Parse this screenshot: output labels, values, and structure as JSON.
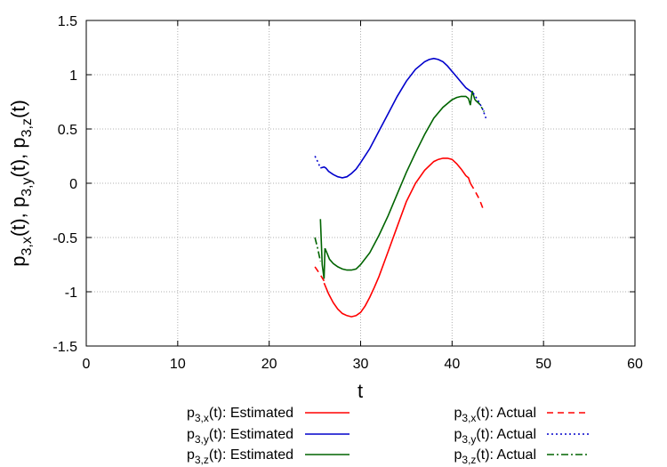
{
  "chart_data": {
    "type": "line",
    "title": "",
    "xlabel": "t",
    "ylabel": "p3,x(t), p3,y(t), p3,z(t)",
    "ylabel_parts": [
      {
        "base": "p",
        "sub": "3,x",
        "rest": "(t), "
      },
      {
        "base": "p",
        "sub": "3,y",
        "rest": "(t), "
      },
      {
        "base": "p",
        "sub": "3,z",
        "rest": "(t)"
      }
    ],
    "xlim": [
      0,
      60
    ],
    "ylim": [
      -1.5,
      1.5
    ],
    "xticks": [
      0,
      10,
      20,
      30,
      40,
      50,
      60
    ],
    "yticks": [
      -1.5,
      -1,
      -0.5,
      0,
      0.5,
      1,
      1.5
    ],
    "xtick_labels": [
      "0",
      "10",
      "20",
      "30",
      "40",
      "50",
      "60"
    ],
    "ytick_labels": [
      "-1.5",
      "-1",
      "-0.5",
      "0",
      "0.5",
      "1",
      "1.5"
    ],
    "grid": true,
    "legend_position": "below",
    "series": [
      {
        "name": "p3,x(t): Estimated",
        "legend": {
          "base": "p",
          "sub": "3,x",
          "rest": "(t): Estimated"
        },
        "color": "#ff0000",
        "dash": "solid",
        "x": [
          26.0,
          26.5,
          27.0,
          27.5,
          28.0,
          28.5,
          29.0,
          29.5,
          30.0,
          30.5,
          31.0,
          31.5,
          32.0,
          33.0,
          34.0,
          35.0,
          36.0,
          37.0,
          38.0,
          38.5,
          39.0,
          39.5,
          40.0,
          40.5,
          41.0,
          41.5,
          41.8,
          42.0
        ],
        "y": [
          -0.92,
          -1.02,
          -1.1,
          -1.16,
          -1.2,
          -1.22,
          -1.23,
          -1.22,
          -1.19,
          -1.13,
          -1.05,
          -0.96,
          -0.86,
          -0.63,
          -0.4,
          -0.17,
          0.0,
          0.12,
          0.2,
          0.22,
          0.23,
          0.23,
          0.22,
          0.18,
          0.13,
          0.07,
          0.05,
          0.0
        ]
      },
      {
        "name": "p3,y(t): Estimated",
        "legend": {
          "base": "p",
          "sub": "3,y",
          "rest": "(t): Estimated"
        },
        "color": "#0000cc",
        "dash": "solid",
        "x": [
          25.6,
          26.0,
          26.2,
          26.5,
          27.0,
          27.5,
          28.0,
          28.5,
          29.0,
          29.5,
          30.0,
          31.0,
          32.0,
          33.0,
          34.0,
          35.0,
          36.0,
          37.0,
          37.5,
          38.0,
          38.5,
          39.0,
          39.5,
          40.0,
          40.5,
          41.0,
          41.5,
          42.0,
          42.3
        ],
        "y": [
          0.14,
          0.15,
          0.14,
          0.11,
          0.08,
          0.06,
          0.05,
          0.06,
          0.09,
          0.13,
          0.19,
          0.32,
          0.48,
          0.64,
          0.8,
          0.94,
          1.05,
          1.12,
          1.14,
          1.15,
          1.14,
          1.12,
          1.08,
          1.03,
          0.98,
          0.93,
          0.88,
          0.85,
          0.83
        ]
      },
      {
        "name": "p3,z(t): Estimated",
        "legend": {
          "base": "p",
          "sub": "3,z",
          "rest": "(t): Estimated"
        },
        "color": "#006400",
        "dash": "solid",
        "x": [
          25.6,
          25.8,
          26.0,
          26.1,
          26.3,
          26.6,
          27.0,
          27.5,
          28.0,
          28.5,
          29.0,
          29.5,
          30.0,
          31.0,
          32.0,
          33.0,
          34.0,
          35.0,
          36.0,
          37.0,
          38.0,
          39.0,
          40.0,
          40.5,
          41.0,
          41.5,
          41.8,
          42.0,
          42.2,
          42.5
        ],
        "y": [
          -0.33,
          -0.75,
          -0.88,
          -0.6,
          -0.64,
          -0.7,
          -0.74,
          -0.77,
          -0.79,
          -0.8,
          -0.8,
          -0.79,
          -0.75,
          -0.64,
          -0.48,
          -0.3,
          -0.1,
          0.1,
          0.28,
          0.45,
          0.6,
          0.7,
          0.77,
          0.79,
          0.8,
          0.8,
          0.78,
          0.72,
          0.85,
          0.77
        ]
      },
      {
        "name": "p3,x(t): Actual",
        "legend": {
          "base": "p",
          "sub": "3,x",
          "rest": "(t): Actual"
        },
        "color": "#ff0000",
        "dash": "dashed",
        "x": [
          25.0,
          25.5,
          26.0,
          42.0,
          42.5,
          43.0,
          43.5
        ],
        "y": [
          -0.77,
          -0.83,
          -0.9,
          0.0,
          -0.07,
          -0.15,
          -0.26
        ]
      },
      {
        "name": "p3,y(t): Actual",
        "legend": {
          "base": "p",
          "sub": "3,y",
          "rest": "(t): Actual"
        },
        "color": "#0000cc",
        "dash": "dotted",
        "x": [
          25.0,
          25.3,
          25.6,
          42.3,
          42.8,
          43.3,
          43.7
        ],
        "y": [
          0.25,
          0.2,
          0.14,
          0.83,
          0.77,
          0.69,
          0.6
        ]
      },
      {
        "name": "p3,z(t): Actual",
        "legend": {
          "base": "p",
          "sub": "3,z",
          "rest": "(t): Actual"
        },
        "color": "#006400",
        "dash": "dashdot",
        "x": [
          25.0,
          25.3,
          25.6,
          42.5,
          43.0,
          43.5
        ],
        "y": [
          -0.5,
          -0.6,
          -0.72,
          0.77,
          0.73,
          0.66
        ]
      }
    ]
  }
}
